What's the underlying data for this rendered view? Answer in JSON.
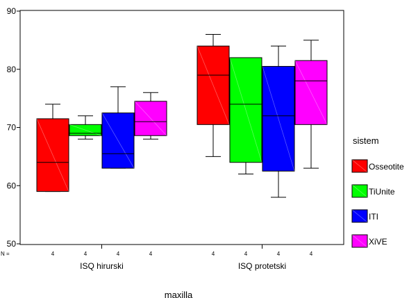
{
  "chart_data": {
    "type": "boxplot",
    "title": "",
    "xlabel": "maxilla",
    "ylabel": "",
    "ylim": [
      50,
      90
    ],
    "yticks": [
      50,
      60,
      70,
      80,
      90
    ],
    "grid": false,
    "legend_title": "sistem",
    "legend_position": "right",
    "n_label": "N =",
    "categories": [
      "ISQ hirurski",
      "ISQ protetski"
    ],
    "series": [
      {
        "name": "Osseotite",
        "color": "#ff0000",
        "boxes": [
          {
            "min": 59,
            "q1": 59,
            "median": 64,
            "q3": 71.5,
            "max": 74,
            "n": "4"
          },
          {
            "min": 65,
            "q1": 70.5,
            "median": 79,
            "q3": 84,
            "max": 86,
            "n": "4"
          }
        ]
      },
      {
        "name": "TiUnite",
        "color": "#00ff00",
        "boxes": [
          {
            "min": 68,
            "q1": 68.6,
            "median": 69,
            "q3": 70.5,
            "max": 72,
            "n": "4"
          },
          {
            "min": 62,
            "q1": 64,
            "median": 74,
            "q3": 82,
            "max": 82,
            "n": "4"
          }
        ]
      },
      {
        "name": "ITI",
        "color": "#0000ff",
        "boxes": [
          {
            "min": 63,
            "q1": 63,
            "median": 65.5,
            "q3": 72.5,
            "max": 77,
            "n": "4"
          },
          {
            "min": 58,
            "q1": 62.5,
            "median": 72,
            "q3": 80.5,
            "max": 84,
            "n": "4"
          }
        ]
      },
      {
        "name": "XiVE",
        "color": "#ff00ff",
        "boxes": [
          {
            "min": 68,
            "q1": 68.6,
            "median": 71,
            "q3": 74.5,
            "max": 76,
            "n": "4"
          },
          {
            "min": 63,
            "q1": 70.5,
            "median": 78,
            "q3": 81.5,
            "max": 85,
            "n": "4"
          }
        ]
      }
    ]
  }
}
